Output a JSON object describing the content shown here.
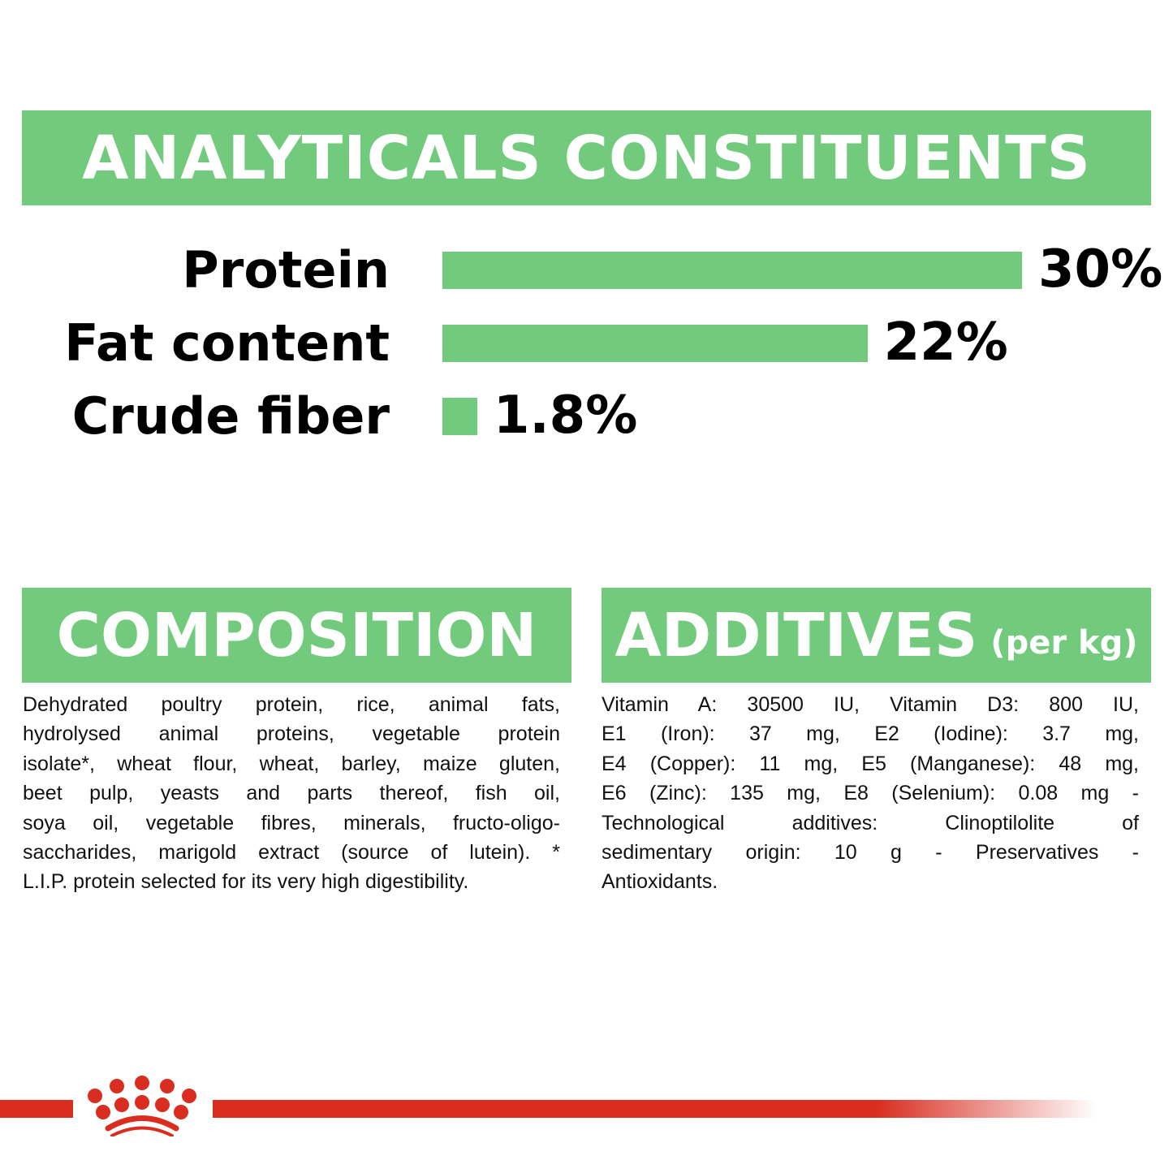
{
  "header": {
    "title": "ANALYTICALS CONSTITUENTS"
  },
  "chart_data": {
    "type": "bar",
    "orientation": "horizontal",
    "categories": [
      "Protein",
      "Fat content",
      "Crude fiber"
    ],
    "values": [
      30,
      22,
      1.8
    ],
    "value_labels": [
      "30%",
      "22%",
      "1.8%"
    ],
    "unit": "%",
    "grid": false,
    "bar_color": "#72cb7c"
  },
  "composition": {
    "title": "COMPOSITION",
    "lines": [
      "Dehydrated poultry protein, rice, animal fats,",
      "hydrolysed animal proteins, vegetable protein",
      "isolate*, wheat flour, wheat, barley, maize gluten,",
      "beet pulp, yeasts and parts thereof, fish oil,",
      "soya oil, vegetable fibres, minerals, fructo-oligo-",
      "saccharides, marigold extract (source of lutein). *",
      "L.I.P. protein selected for its very high digestibility."
    ]
  },
  "additives": {
    "title": "ADDITIVES",
    "subtitle": "(per kg)",
    "lines": [
      "Vitamin A: 30500 IU, Vitamin D3: 800 IU,",
      "E1 (Iron): 37 mg, E2 (Iodine): 3.7 mg,",
      "E4 (Copper): 11 mg, E5 (Manganese): 48 mg,",
      "E6 (Zinc): 135 mg, E8 (Selenium): 0.08 mg -",
      "Technological additives: Clinoptilolite of",
      "sedimentary origin: 10 g - Preservatives -",
      "Antioxidants."
    ]
  },
  "brand": {
    "logo": "crown-logo",
    "color": "#d92d20"
  }
}
